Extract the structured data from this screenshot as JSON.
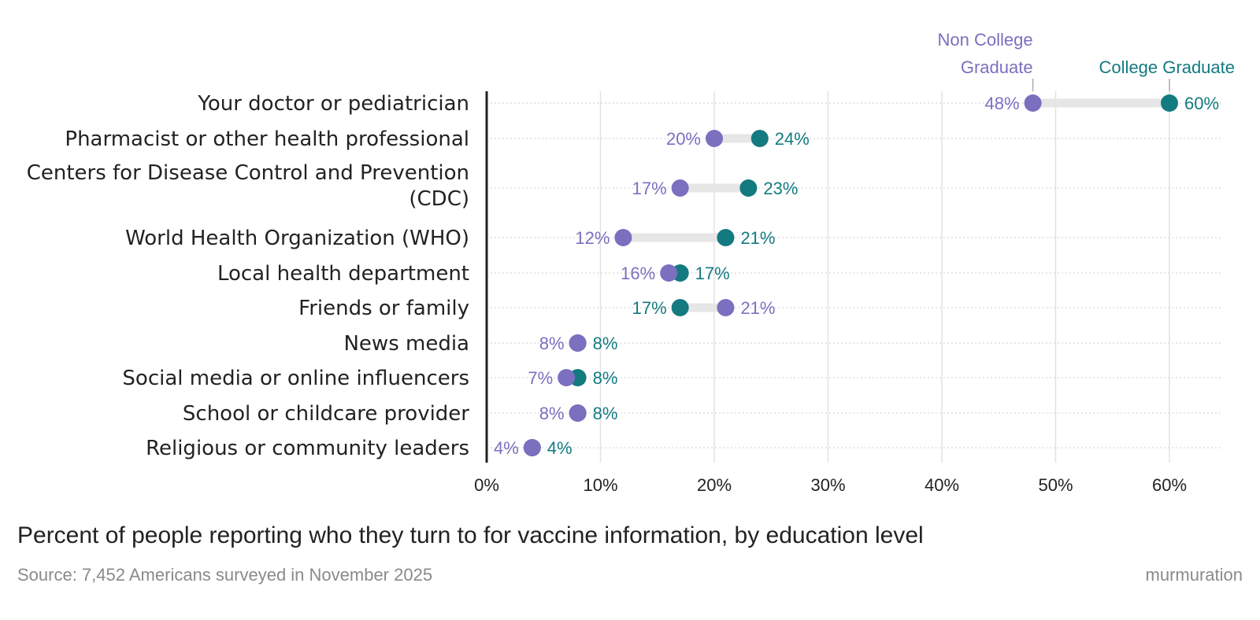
{
  "chart_data": {
    "type": "dumbbell",
    "categories": [
      [
        "Your doctor or pediatrician"
      ],
      [
        "Pharmacist or other health professional"
      ],
      [
        "Centers for Disease Control and Prevention",
        "(CDC)"
      ],
      [
        "World Health Organization (WHO)"
      ],
      [
        "Local health department"
      ],
      [
        "Friends or family"
      ],
      [
        "News media"
      ],
      [
        "Social media or online influencers"
      ],
      [
        "School or childcare provider"
      ],
      [
        "Religious or community leaders"
      ]
    ],
    "series": [
      {
        "name": "Non College Graduate",
        "color": "#7b6fc0",
        "values": [
          48,
          20,
          17,
          12,
          16,
          21,
          8,
          7,
          8,
          4
        ]
      },
      {
        "name": "College Graduate",
        "color": "#137a80",
        "values": [
          60,
          24,
          23,
          21,
          17,
          17,
          8,
          8,
          8,
          4
        ]
      }
    ],
    "legend": {
      "non_college": [
        "Non College",
        "Graduate"
      ],
      "college": [
        "College Graduate"
      ]
    },
    "x_ticks": [
      0,
      10,
      20,
      30,
      40,
      50,
      60
    ],
    "x_tick_labels": [
      "0%",
      "10%",
      "20%",
      "30%",
      "40%",
      "50%",
      "60%"
    ],
    "xlim": [
      0,
      65
    ],
    "grid": true,
    "value_suffix": "%",
    "title": "Percent of people reporting who they turn to for vaccine information, by education level",
    "source": "Source: 7,452 Americans surveyed in November 2025"
  },
  "brand": "murmuration"
}
